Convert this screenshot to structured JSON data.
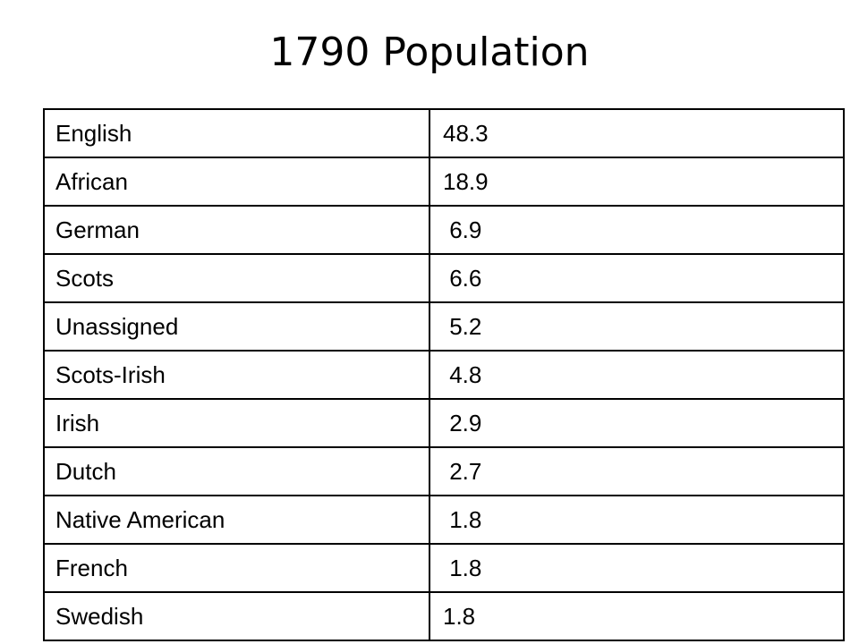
{
  "slide": {
    "title": "1790 Population"
  },
  "table": {
    "rows": [
      {
        "group": "English",
        "value": "48.3"
      },
      {
        "group": "African",
        "value": "18.9"
      },
      {
        "group": "German",
        "value": " 6.9"
      },
      {
        "group": "Scots",
        "value": " 6.6"
      },
      {
        "group": "Unassigned",
        "value": " 5.2"
      },
      {
        "group": "Scots-Irish",
        "value": " 4.8"
      },
      {
        "group": "Irish",
        "value": " 2.9"
      },
      {
        "group": "Dutch",
        "value": " 2.7"
      },
      {
        "group": "Native American",
        "value": " 1.8"
      },
      {
        "group": "French",
        "value": " 1.8"
      },
      {
        "group": "Swedish",
        "value": "1.8"
      }
    ]
  }
}
